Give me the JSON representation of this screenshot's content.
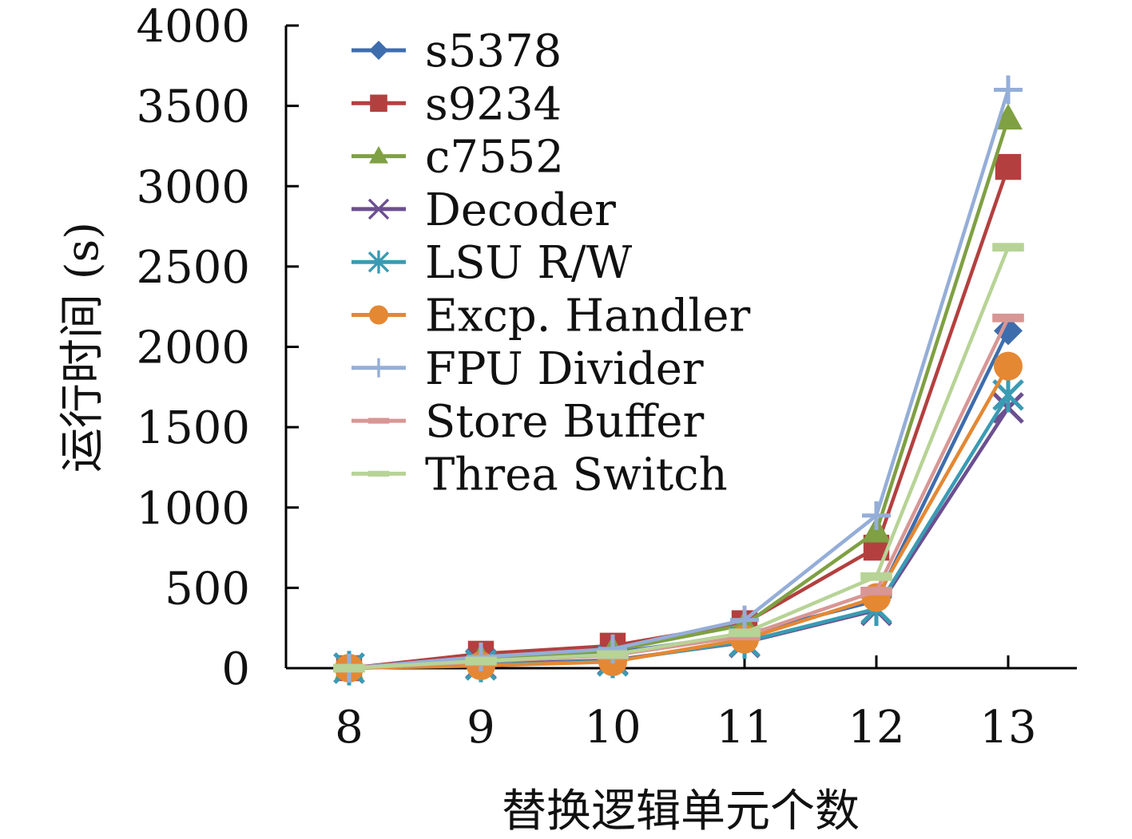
{
  "chart_data": {
    "type": "line",
    "title": "",
    "xlabel": "替换逻辑单元个数",
    "ylabel": "运行时间 (s)",
    "categories": [
      "8",
      "9",
      "10",
      "11",
      "12",
      "13"
    ],
    "ylim": [
      0,
      4000
    ],
    "yticks": [
      "0",
      "500",
      "1000",
      "1500",
      "2000",
      "2500",
      "3000",
      "3500",
      "4000"
    ],
    "grid": false,
    "legend_position": "top-left",
    "series": [
      {
        "name": "s5378",
        "color": "#3E6DAD",
        "marker": "diamond",
        "values": [
          0,
          55,
          95,
          210,
          420,
          2100
        ]
      },
      {
        "name": "s9234",
        "color": "#B3403F",
        "marker": "square",
        "values": [
          0,
          90,
          140,
          280,
          750,
          3120
        ]
      },
      {
        "name": "c7552",
        "color": "#7FA043",
        "marker": "triangle",
        "values": [
          0,
          60,
          110,
          270,
          850,
          3420
        ]
      },
      {
        "name": "Decoder",
        "color": "#6C4F90",
        "marker": "x",
        "values": [
          0,
          25,
          50,
          160,
          360,
          1620
        ]
      },
      {
        "name": "LSU R/W",
        "color": "#3A9BB3",
        "marker": "star",
        "values": [
          0,
          20,
          45,
          165,
          370,
          1700
        ]
      },
      {
        "name": "Excp. Handler",
        "color": "#E48834",
        "marker": "circle",
        "values": [
          0,
          15,
          40,
          180,
          440,
          1880
        ]
      },
      {
        "name": "FPU Divider",
        "color": "#95AED8",
        "marker": "plus",
        "values": [
          0,
          70,
          120,
          300,
          950,
          3600
        ]
      },
      {
        "name": "Store Buffer",
        "color": "#D89694",
        "marker": "dash",
        "values": [
          0,
          40,
          80,
          200,
          480,
          2180
        ]
      },
      {
        "name": "Threa Switch",
        "color": "#B7D396",
        "marker": "dash",
        "values": [
          0,
          45,
          85,
          220,
          570,
          2620
        ]
      }
    ]
  }
}
